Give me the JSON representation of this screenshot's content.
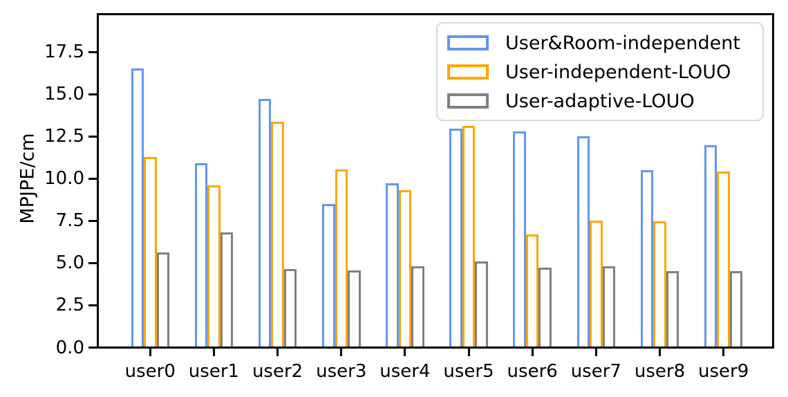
{
  "chart_data": {
    "type": "bar",
    "title": "",
    "xlabel": "",
    "ylabel": "MPJPE/cm",
    "categories": [
      "user0",
      "user1",
      "user2",
      "user3",
      "user4",
      "user5",
      "user6",
      "user7",
      "user8",
      "user9"
    ],
    "series": [
      {
        "name": "User&Room-independent",
        "color": "#6495ED",
        "fill": "none",
        "values": [
          16.45,
          10.85,
          14.65,
          8.45,
          9.65,
          12.9,
          12.75,
          12.45,
          10.45,
          11.9
        ]
      },
      {
        "name": "User-independent-LOUO",
        "color": "#FFA500",
        "fill": "none",
        "values": [
          11.2,
          9.55,
          13.3,
          10.5,
          9.25,
          13.05,
          6.65,
          7.45,
          7.4,
          10.35
        ]
      },
      {
        "name": "User-adaptive-LOUO",
        "color": "#808080",
        "fill": "none",
        "values": [
          5.55,
          6.75,
          4.6,
          4.5,
          4.75,
          5.05,
          4.65,
          4.75,
          4.45,
          4.45
        ]
      }
    ],
    "ylim": [
      0,
      19.6
    ],
    "yticks": [
      0.0,
      2.5,
      5.0,
      7.5,
      10.0,
      12.5,
      15.0,
      17.5
    ],
    "ytick_labels": [
      "0.0",
      "2.5",
      "5.0",
      "7.5",
      "10.0",
      "12.5",
      "15.0",
      "17.5"
    ],
    "grid": false,
    "legend_position": "upper right",
    "axis_color": "#000000",
    "background_color": "#FFFFFF"
  }
}
